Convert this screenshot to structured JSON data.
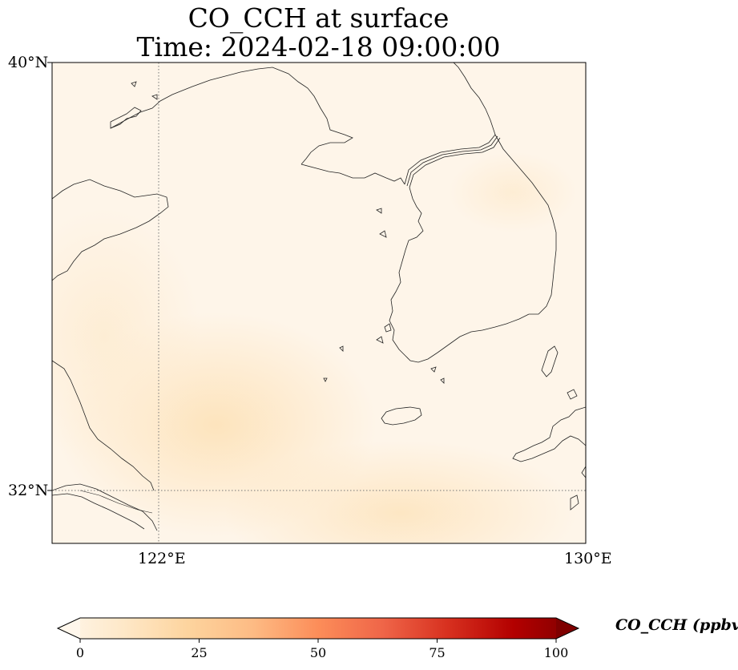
{
  "title": {
    "line1": "CO_CCH at surface",
    "line2": "Time: 2024-02-18 09:00:00"
  },
  "axes": {
    "lat_labels": [
      "40°N",
      "32°N"
    ],
    "lon_labels": [
      "122°E",
      "130°E"
    ]
  },
  "colorbar": {
    "label": "CO_CCH (ppbv)",
    "ticks": [
      "0",
      "25",
      "50",
      "75",
      "100"
    ],
    "range": [
      0,
      100
    ],
    "extend": "both",
    "colormap": "OrRd",
    "colors": [
      "#fff7ec",
      "#fee8c8",
      "#fdd49e",
      "#fdbb84",
      "#fc8d59",
      "#ef6548",
      "#d7301f",
      "#b30000",
      "#7f0000"
    ]
  }
}
